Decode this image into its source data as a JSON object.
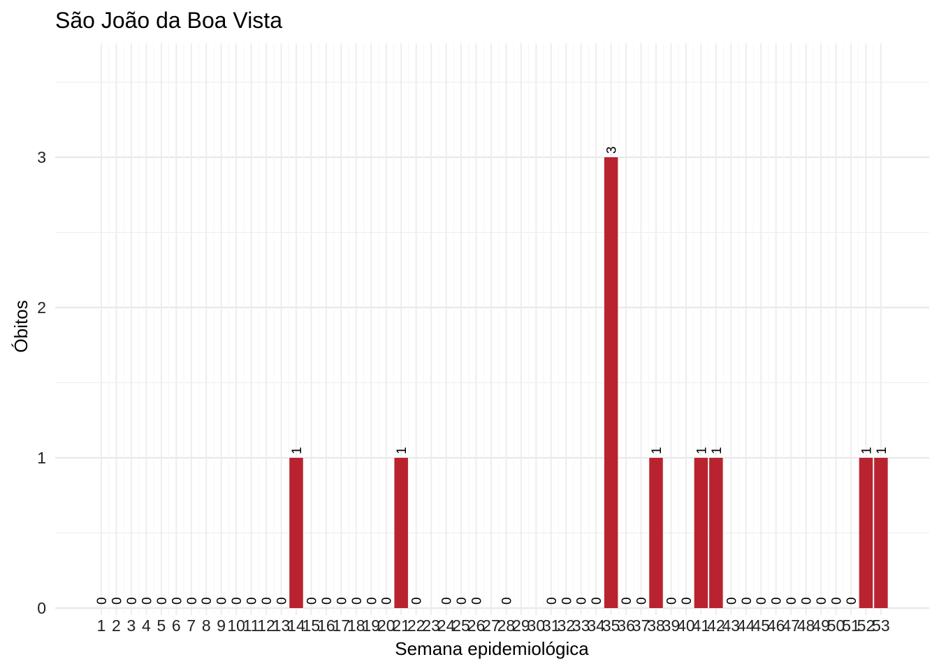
{
  "chart_data": {
    "type": "bar",
    "title": "São João da Boa Vista",
    "xlabel": "Semana epidemiológica",
    "ylabel": "Óbitos",
    "categories": [
      "1",
      "2",
      "3",
      "4",
      "5",
      "6",
      "7",
      "8",
      "9",
      "10",
      "11",
      "12",
      "13",
      "14",
      "15",
      "16",
      "17",
      "18",
      "19",
      "20",
      "21",
      "22",
      "23",
      "24",
      "25",
      "26",
      "27",
      "28",
      "29",
      "30",
      "31",
      "32",
      "33",
      "34",
      "35",
      "36",
      "37",
      "38",
      "39",
      "40",
      "41",
      "42",
      "43",
      "44",
      "45",
      "46",
      "47",
      "48",
      "49",
      "50",
      "51",
      "52",
      "53"
    ],
    "values": [
      0,
      0,
      0,
      0,
      0,
      0,
      0,
      0,
      0,
      0,
      0,
      0,
      0,
      1,
      0,
      0,
      0,
      0,
      0,
      0,
      1,
      0,
      null,
      0,
      0,
      0,
      null,
      0,
      null,
      null,
      0,
      0,
      0,
      0,
      3,
      0,
      0,
      1,
      0,
      0,
      1,
      1,
      0,
      0,
      0,
      0,
      0,
      0,
      0,
      0,
      0,
      1,
      1
    ],
    "data_labels": [
      "0",
      "0",
      "0",
      "0",
      "0",
      "0",
      "0",
      "0",
      "0",
      "0",
      "0",
      "0",
      "0",
      "1",
      "0",
      "0",
      "0",
      "0",
      "0",
      "0",
      "1",
      "0",
      "",
      "0",
      "0",
      "0",
      "",
      "0",
      "",
      "",
      "0",
      "0",
      "0",
      "0",
      "3",
      "0",
      "0",
      "1",
      "0",
      "0",
      "1",
      "1",
      "0",
      "0",
      "0",
      "0",
      "0",
      "0",
      "0",
      "0",
      "0",
      "1",
      "1"
    ],
    "yticks": [
      "0",
      "1",
      "2",
      "3"
    ],
    "ylim": [
      0,
      3.7
    ],
    "bar_color": "#b8232f",
    "grid": true,
    "legend": "none"
  }
}
